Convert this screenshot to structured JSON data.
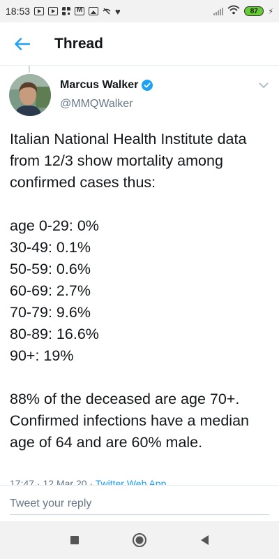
{
  "status_bar": {
    "time": "18:53",
    "notification_icons": [
      "youtube-icon",
      "video-icon",
      "qr-icon",
      "mail-icon",
      "image-icon",
      "no-signal-icon",
      "heart-icon"
    ],
    "battery": "87"
  },
  "header": {
    "title": "Thread",
    "back_icon": "arrow-left-icon"
  },
  "tweet": {
    "author_name": "Marcus Walker",
    "verified": true,
    "handle": "@MMQWalker",
    "text": "Italian National Health Institute data from 12/3 show mortality among confirmed cases thus:\n\nage 0-29: 0%\n30-49: 0.1%\n50-59: 0.6%\n60-69: 2.7%\n70-79: 9.6%\n80-89: 16.6%\n90+: 19%\n\n88% of the deceased are age 70+. Confirmed infections have a median age of 64 and are 60% male.",
    "timestamp": "17:47 · 12 Mar 20 · ",
    "source": "Twitter Web App"
  },
  "reply": {
    "placeholder": "Tweet your reply"
  },
  "colors": {
    "accent": "#1da1f2",
    "text": "#14171a",
    "muted": "#657786",
    "battery": "#66cc33"
  }
}
